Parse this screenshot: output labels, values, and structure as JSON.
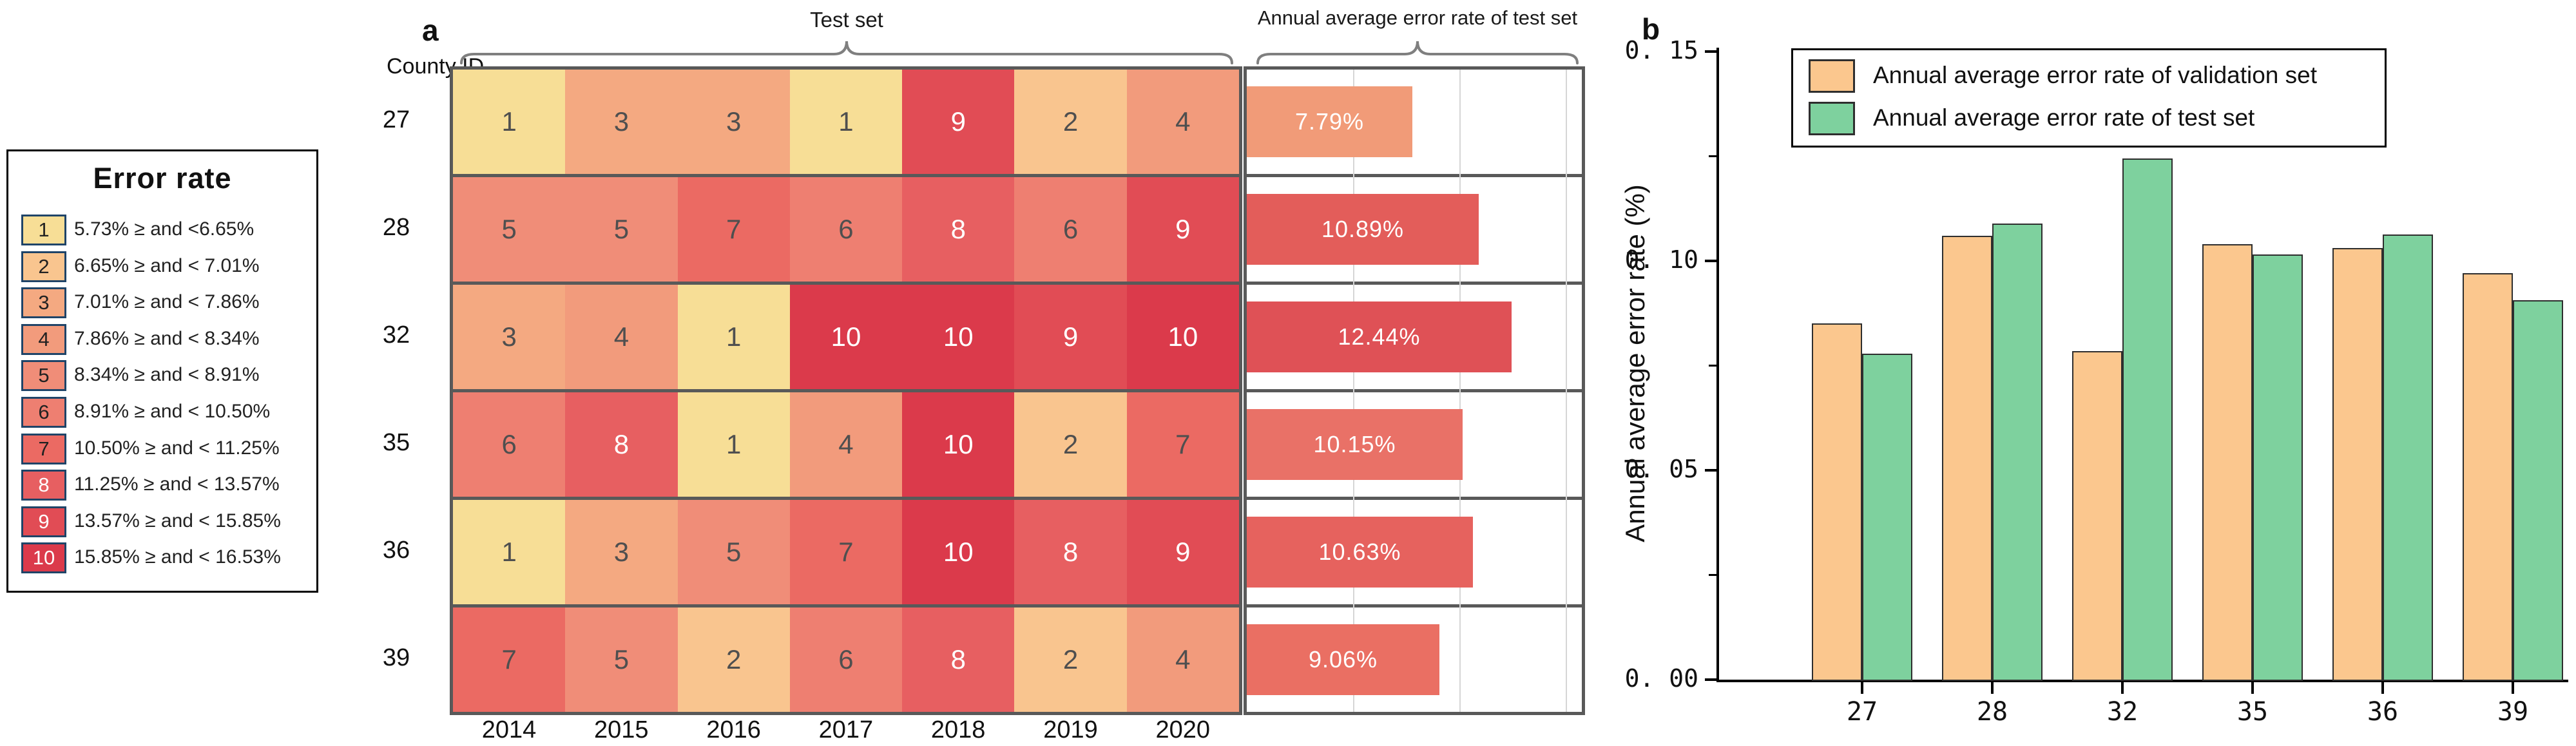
{
  "figure": {
    "panel_a": {
      "label": "a",
      "county_id_label": "County ID",
      "brace_heatmap_label": "Test set",
      "brace_bars_label": "Annual average error rate of test set",
      "years": [
        "2014",
        "2015",
        "2016",
        "2017",
        "2018",
        "2019",
        "2020"
      ],
      "rows": [
        {
          "county": "27",
          "bins": [
            1,
            3,
            3,
            1,
            9,
            2,
            4
          ],
          "avg_label": "7.79%",
          "avg_value": 7.79,
          "bar_color": "#F19B78"
        },
        {
          "county": "28",
          "bins": [
            5,
            5,
            7,
            6,
            8,
            6,
            9
          ],
          "avg_label": "10.89%",
          "avg_value": 10.89,
          "bar_color": "#E35D5A"
        },
        {
          "county": "32",
          "bins": [
            3,
            4,
            1,
            10,
            10,
            9,
            10
          ],
          "avg_label": "12.44%",
          "avg_value": 12.44,
          "bar_color": "#DF5156"
        },
        {
          "county": "35",
          "bins": [
            6,
            8,
            1,
            4,
            10,
            2,
            7
          ],
          "avg_label": "10.15%",
          "avg_value": 10.15,
          "bar_color": "#E97167"
        },
        {
          "county": "36",
          "bins": [
            1,
            3,
            5,
            7,
            10,
            8,
            9
          ],
          "avg_label": "10.63%",
          "avg_value": 10.63,
          "bar_color": "#E6625E"
        },
        {
          "county": "39",
          "bins": [
            7,
            5,
            2,
            6,
            8,
            2,
            4
          ],
          "avg_label": "9.06%",
          "avg_value": 9.06,
          "bar_color": "#EA6F63"
        }
      ],
      "bar_axis": {
        "max": 15.75,
        "gridlines": [
          5,
          10,
          15
        ],
        "unit": "%"
      }
    },
    "error_rate_legend": {
      "title": "Error rate",
      "items": [
        {
          "bin": "1",
          "color": "#F7DE96",
          "text_color": "#222222",
          "label": "5.73% ≥  and <6.65%"
        },
        {
          "bin": "2",
          "color": "#F9C58F",
          "text_color": "#222222",
          "label": "6.65% ≥  and < 7.01%"
        },
        {
          "bin": "3",
          "color": "#F4A981",
          "text_color": "#222222",
          "label": "7.01% ≥  and < 7.86%"
        },
        {
          "bin": "4",
          "color": "#F29B7C",
          "text_color": "#222222",
          "label": "7.86% ≥  and < 8.34%"
        },
        {
          "bin": "5",
          "color": "#F08D78",
          "text_color": "#222222",
          "label": "8.34% ≥  and < 8.91%"
        },
        {
          "bin": "6",
          "color": "#EE7F71",
          "text_color": "#222222",
          "label": "8.91% ≥  and < 10.50%"
        },
        {
          "bin": "7",
          "color": "#EB6A63",
          "text_color": "#222222",
          "label": "10.50% ≥  and < 11.25%"
        },
        {
          "bin": "8",
          "color": "#E75F61",
          "text_color": "#ffffff",
          "label": "11.25% ≥  and < 13.57%"
        },
        {
          "bin": "9",
          "color": "#E14C55",
          "text_color": "#ffffff",
          "label": "13.57% ≥  and < 15.85%"
        },
        {
          "bin": "10",
          "color": "#DB3A4B",
          "text_color": "#ffffff",
          "label": "15.85% ≥  and < 16.53%"
        }
      ]
    },
    "panel_b": {
      "label": "b",
      "ylabel": "Annual average error rate (%)",
      "ylim": [
        0,
        0.15
      ],
      "yticks": [
        {
          "value": 0.15,
          "label": "0. 15"
        },
        {
          "value": 0.1,
          "label": "0. 10"
        },
        {
          "value": 0.05,
          "label": "0. 05"
        },
        {
          "value": 0.0,
          "label": "0. 00"
        }
      ],
      "minor_yticks": [
        0.025,
        0.075,
        0.125
      ],
      "categories": [
        "27",
        "28",
        "32",
        "35",
        "36",
        "39"
      ],
      "legend": [
        {
          "label": "Annual average error rate of validation set",
          "color": "#FBC78E"
        },
        {
          "label": "Annual average error rate of test set",
          "color": "#7ED19E"
        }
      ],
      "series": [
        {
          "name": "validation",
          "color": "#FBC78E",
          "values": [
            0.085,
            0.106,
            0.0785,
            0.104,
            0.103,
            0.097
          ]
        },
        {
          "name": "test",
          "color": "#7ED19E",
          "values": [
            0.0779,
            0.1089,
            0.1244,
            0.1015,
            0.1063,
            0.0906
          ]
        }
      ]
    },
    "palette": {
      "bin_colors": {
        "1": "#F7DE96",
        "2": "#F9C58F",
        "3": "#F4A981",
        "4": "#F29B7C",
        "5": "#F08D78",
        "6": "#EE7F71",
        "7": "#EB6A63",
        "8": "#E75F61",
        "9": "#E14C55",
        "10": "#DB3A4B"
      },
      "cell_text_dark": "#4f4f4f",
      "cell_text_light": "#ffffff",
      "separator_gray": "#595959",
      "brace_gray": "#7f7f7f"
    }
  },
  "chart_data": [
    {
      "type": "heatmap",
      "title": "Test set",
      "rows": [
        "27",
        "28",
        "32",
        "35",
        "36",
        "39"
      ],
      "columns": [
        "2014",
        "2015",
        "2016",
        "2017",
        "2018",
        "2019",
        "2020"
      ],
      "values": [
        [
          1,
          3,
          3,
          1,
          9,
          2,
          4
        ],
        [
          5,
          5,
          7,
          6,
          8,
          6,
          9
        ],
        [
          3,
          4,
          1,
          10,
          10,
          9,
          10
        ],
        [
          6,
          8,
          1,
          4,
          10,
          2,
          7
        ],
        [
          1,
          3,
          5,
          7,
          10,
          8,
          9
        ],
        [
          7,
          5,
          2,
          6,
          8,
          2,
          4
        ]
      ],
      "value_meaning": "error-rate bin (1 lowest to 10 highest), bins defined in Error rate legend"
    },
    {
      "type": "bar",
      "orientation": "horizontal",
      "title": "Annual average error rate of test set",
      "categories": [
        "27",
        "28",
        "32",
        "35",
        "36",
        "39"
      ],
      "values": [
        7.79,
        10.89,
        12.44,
        10.15,
        10.63,
        9.06
      ],
      "unit": "%",
      "xlim": [
        0,
        15.75
      ],
      "gridlines": [
        5,
        10,
        15
      ]
    },
    {
      "type": "bar",
      "title": "b",
      "categories": [
        "27",
        "28",
        "32",
        "35",
        "36",
        "39"
      ],
      "series": [
        {
          "name": "Annual average error rate of validation set",
          "values": [
            0.085,
            0.106,
            0.0785,
            0.104,
            0.103,
            0.097
          ]
        },
        {
          "name": "Annual average error rate of test set",
          "values": [
            0.0779,
            0.1089,
            0.1244,
            0.1015,
            0.1063,
            0.0906
          ]
        }
      ],
      "ylabel": "Annual average error rate (%)",
      "ylim": [
        0,
        0.15
      ],
      "yticks": [
        0.0,
        0.05,
        0.1,
        0.15
      ],
      "grid": false,
      "legend_position": "upper left"
    }
  ]
}
